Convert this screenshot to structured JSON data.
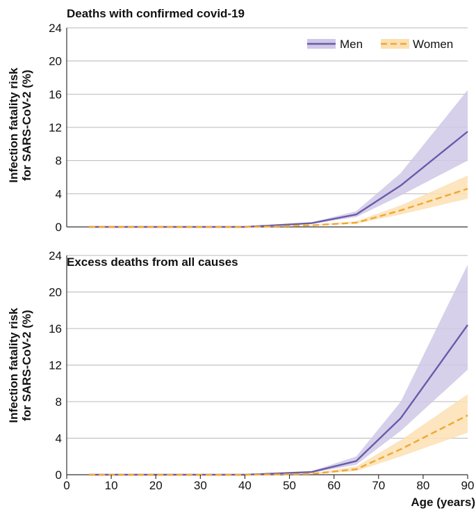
{
  "chart_data": [
    {
      "type": "line",
      "title": "Deaths with confirmed covid-19",
      "ylabel": [
        "Infection fatality risk",
        "for SARS-CoV-2 (%)"
      ],
      "xlabel": "",
      "ylim": [
        0,
        24
      ],
      "yticks": [
        "0",
        "4",
        "8",
        "12",
        "16",
        "20",
        "24"
      ],
      "xlim": [
        0,
        90
      ],
      "grid": "horizontal",
      "legend_position": "top-right",
      "series": [
        {
          "name": "Men",
          "color": "#6a5aaa",
          "band_color": "#cfc8e6",
          "style": "solid",
          "x": [
            5,
            10,
            20,
            30,
            40,
            50,
            55,
            65,
            75,
            90
          ],
          "y": [
            0,
            0,
            0,
            0,
            0,
            0.3,
            0.45,
            1.5,
            5.0,
            11.5
          ],
          "lower": [
            0,
            0,
            0,
            0,
            0,
            0.2,
            0.35,
            1.2,
            3.8,
            8.0
          ],
          "upper": [
            0,
            0,
            0,
            0,
            0,
            0.4,
            0.55,
            1.9,
            6.5,
            16.5
          ]
        },
        {
          "name": "Women",
          "color": "#f0a830",
          "band_color": "#fbe0b4",
          "style": "dashed",
          "x": [
            5,
            10,
            20,
            30,
            40,
            50,
            55,
            65,
            75,
            90
          ],
          "y": [
            0,
            0,
            0,
            0,
            0,
            0.1,
            0.2,
            0.5,
            2.0,
            4.6
          ],
          "lower": [
            0,
            0,
            0,
            0,
            0,
            0.05,
            0.15,
            0.4,
            1.5,
            3.4
          ],
          "upper": [
            0,
            0,
            0,
            0,
            0,
            0.15,
            0.25,
            0.7,
            2.6,
            6.2
          ]
        }
      ]
    },
    {
      "type": "line",
      "title": "Excess deaths from all causes",
      "ylabel": [
        "Infection fatality risk",
        "for SARS-CoV-2 (%)"
      ],
      "xlabel": "Age (years)",
      "ylim": [
        0,
        24
      ],
      "yticks": [
        "0",
        "4",
        "8",
        "12",
        "16",
        "20",
        "24"
      ],
      "xlim": [
        0,
        90
      ],
      "xticks": [
        "0",
        "10",
        "20",
        "30",
        "40",
        "50",
        "60",
        "70",
        "80",
        "90"
      ],
      "grid": "horizontal",
      "series": [
        {
          "name": "Men",
          "color": "#6a5aaa",
          "band_color": "#cfc8e6",
          "style": "solid",
          "x": [
            5,
            10,
            20,
            30,
            40,
            50,
            55,
            65,
            75,
            90
          ],
          "y": [
            0,
            0,
            0,
            0,
            0,
            0.2,
            0.3,
            1.5,
            6.2,
            16.4
          ],
          "lower": [
            0,
            0,
            0,
            0,
            0,
            0.1,
            0.2,
            1.1,
            4.8,
            11.5
          ],
          "upper": [
            0,
            0,
            0,
            0,
            0,
            0.3,
            0.4,
            2.0,
            8.0,
            23.0
          ]
        },
        {
          "name": "Women",
          "color": "#f0a830",
          "band_color": "#fbe0b4",
          "style": "dashed",
          "x": [
            5,
            10,
            20,
            30,
            40,
            50,
            55,
            65,
            75,
            90
          ],
          "y": [
            0,
            0,
            0,
            0,
            0,
            0.05,
            0.1,
            0.6,
            2.8,
            6.5
          ],
          "lower": [
            0,
            0,
            0,
            0,
            0,
            0.03,
            0.05,
            0.4,
            2.0,
            4.6
          ],
          "upper": [
            0,
            0,
            0,
            0,
            0,
            0.1,
            0.15,
            0.9,
            3.8,
            8.8
          ]
        }
      ]
    }
  ]
}
